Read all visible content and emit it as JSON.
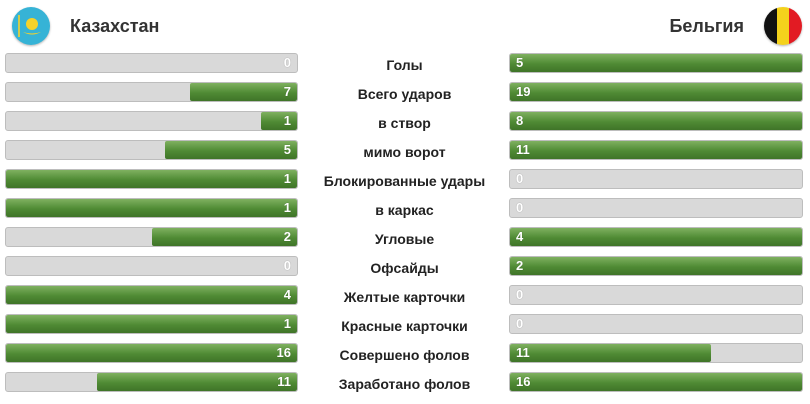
{
  "header": {
    "home_team": "Казахстан",
    "away_team": "Бельгия",
    "home_flag_icon": "kazakhstan-flag-icon",
    "away_flag_icon": "belgium-flag-icon"
  },
  "colors": {
    "bar_fill": "#4f8a34",
    "bar_track": "#d9d9d9",
    "kz_blue": "#36b3d6",
    "kz_gold": "#f5d22a",
    "be_black": "#111111",
    "be_yellow": "#f4d21c",
    "be_red": "#e21b23"
  },
  "stats": [
    {
      "label": "Голы",
      "home": 0,
      "away": 5
    },
    {
      "label": "Всего ударов",
      "home": 7,
      "away": 19
    },
    {
      "label": "в створ",
      "home": 1,
      "away": 8
    },
    {
      "label": "мимо ворот",
      "home": 5,
      "away": 11
    },
    {
      "label": "Блокированные удары",
      "home": 1,
      "away": 0
    },
    {
      "label": "в каркас",
      "home": 1,
      "away": 0
    },
    {
      "label": "Угловые",
      "home": 2,
      "away": 4
    },
    {
      "label": "Офсайды",
      "home": 0,
      "away": 2
    },
    {
      "label": "Желтые карточки",
      "home": 4,
      "away": 0
    },
    {
      "label": "Красные карточки",
      "home": 1,
      "away": 0
    },
    {
      "label": "Совершено фолов",
      "home": 16,
      "away": 11
    },
    {
      "label": "Заработано фолов",
      "home": 11,
      "away": 16
    }
  ]
}
